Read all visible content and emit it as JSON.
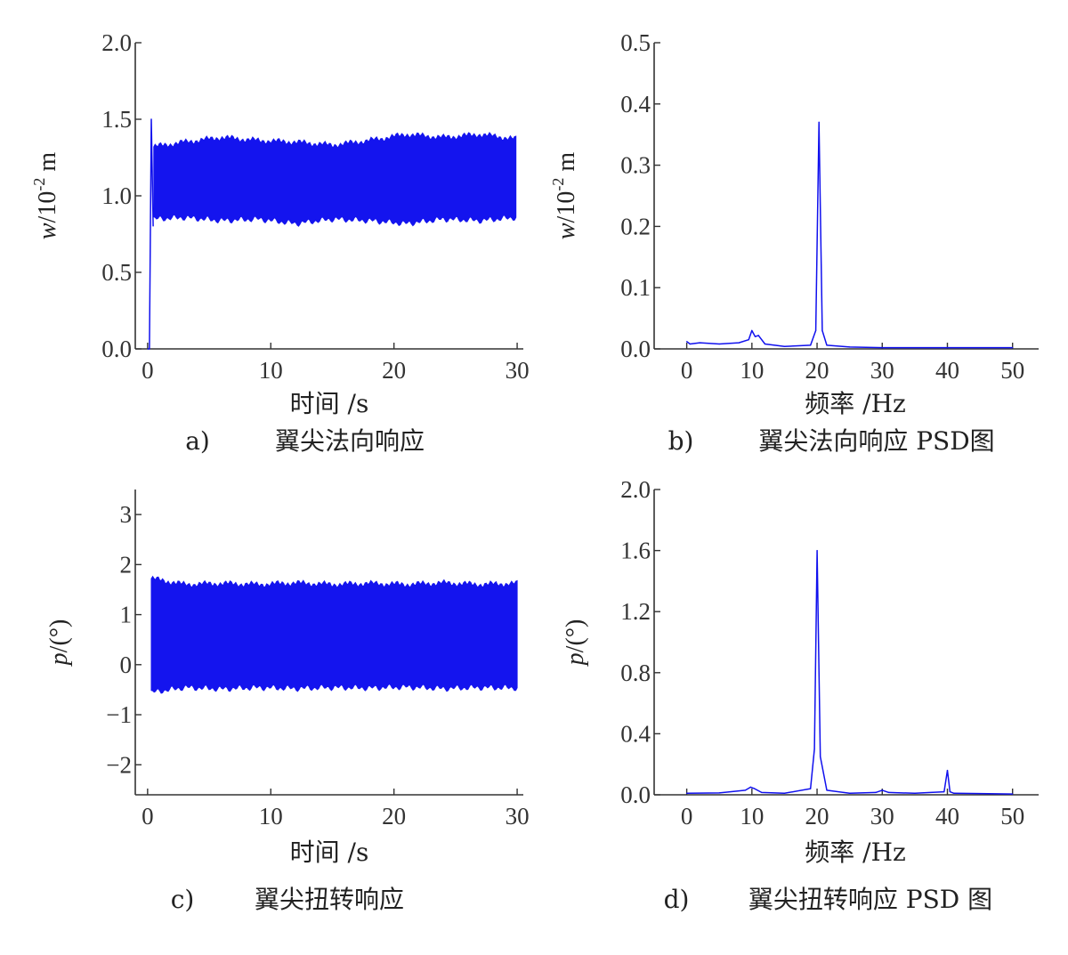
{
  "chart_data": [
    {
      "id": "a",
      "type": "line",
      "caption_label": "a)",
      "caption": "翼尖法向响应",
      "xlabel": "时间 /s",
      "ylabel_var": "w",
      "ylabel_unit": "/10",
      "ylabel_exp": "-2",
      "ylabel_tail": " m",
      "xlim": [
        -1,
        30.5
      ],
      "ylim": [
        0,
        2.0
      ],
      "xticks": [
        0,
        10,
        20,
        30
      ],
      "xtick_labels": [
        "0",
        "10",
        "20",
        "30"
      ],
      "yticks": [
        0,
        0.5,
        1.0,
        1.5,
        2.0
      ],
      "ytick_labels": [
        "0.0",
        "0.5",
        "1.0",
        "1.5",
        "2.0"
      ],
      "grid": false,
      "series": [
        {
          "color": "#1010ee",
          "style": "oscillation-band",
          "startup": [
            [
              0,
              0
            ],
            [
              0.15,
              0.0
            ],
            [
              0.3,
              1.5
            ],
            [
              0.45,
              0.8
            ]
          ],
          "x": [
            0.5,
            3,
            6,
            9,
            12,
            15,
            18,
            21,
            24,
            27,
            29.9
          ],
          "upper": [
            1.32,
            1.35,
            1.38,
            1.36,
            1.35,
            1.33,
            1.36,
            1.4,
            1.38,
            1.4,
            1.37
          ],
          "lower": [
            0.85,
            0.86,
            0.84,
            0.85,
            0.82,
            0.85,
            0.84,
            0.82,
            0.85,
            0.84,
            0.86
          ]
        }
      ]
    },
    {
      "id": "b",
      "type": "line",
      "caption_label": "b)",
      "caption": "翼尖法向响应 PSD图",
      "xlabel": "频率 /Hz",
      "ylabel_var": "w",
      "ylabel_unit": "/10",
      "ylabel_exp": "-2",
      "ylabel_tail": " m",
      "xlim": [
        -5,
        54
      ],
      "ylim": [
        0,
        0.5
      ],
      "xticks": [
        0,
        10,
        20,
        30,
        40,
        50
      ],
      "xtick_labels": [
        "0",
        "10",
        "20",
        "30",
        "40",
        "50"
      ],
      "yticks": [
        0,
        0.1,
        0.2,
        0.3,
        0.4,
        0.5
      ],
      "ytick_labels": [
        "0.0",
        "0.1",
        "0.2",
        "0.3",
        "0.4",
        "0.5"
      ],
      "grid": false,
      "series": [
        {
          "color": "#1010ee",
          "x": [
            0,
            0.5,
            2,
            5,
            8,
            9.5,
            10,
            10.5,
            11,
            12,
            15,
            19,
            19.8,
            20.3,
            20.8,
            21.5,
            25,
            30,
            40,
            50
          ],
          "y": [
            0.012,
            0.008,
            0.01,
            0.008,
            0.01,
            0.015,
            0.03,
            0.02,
            0.022,
            0.008,
            0.004,
            0.006,
            0.03,
            0.37,
            0.03,
            0.006,
            0.003,
            0.002,
            0.002,
            0.002
          ]
        }
      ]
    },
    {
      "id": "c",
      "type": "line",
      "caption_label": "c)",
      "caption": "翼尖扭转响应",
      "xlabel": "时间 /s",
      "ylabel_var": "p",
      "ylabel_unit": "/(°)",
      "ylabel_exp": "",
      "ylabel_tail": "",
      "xlim": [
        -1,
        30.5
      ],
      "ylim": [
        -2.6,
        3.5
      ],
      "xticks": [
        0,
        10,
        20,
        30
      ],
      "xtick_labels": [
        "0",
        "10",
        "20",
        "30"
      ],
      "yticks": [
        -2,
        -1,
        0,
        1,
        2,
        3
      ],
      "ytick_labels": [
        "−2",
        "−1",
        "0",
        "1",
        "2",
        "3"
      ],
      "grid": false,
      "series": [
        {
          "color": "#1010ee",
          "style": "oscillation-band",
          "startup": [],
          "x": [
            0.3,
            3,
            6,
            9,
            12,
            15,
            18,
            21,
            24,
            27,
            30
          ],
          "upper": [
            1.72,
            1.6,
            1.62,
            1.6,
            1.63,
            1.6,
            1.62,
            1.6,
            1.63,
            1.6,
            1.62
          ],
          "lower": [
            -0.55,
            -0.45,
            -0.48,
            -0.45,
            -0.47,
            -0.45,
            -0.46,
            -0.44,
            -0.47,
            -0.45,
            -0.46
          ]
        }
      ]
    },
    {
      "id": "d",
      "type": "line",
      "caption_label": "d)",
      "caption": "翼尖扭转响应 PSD 图",
      "xlabel": "频率 /Hz",
      "ylabel_var": "p",
      "ylabel_unit": "/(°)",
      "ylabel_exp": "",
      "ylabel_tail": "",
      "xlim": [
        -5,
        54
      ],
      "ylim": [
        0,
        2.0
      ],
      "xticks": [
        0,
        10,
        20,
        30,
        40,
        50
      ],
      "xtick_labels": [
        "0",
        "10",
        "20",
        "30",
        "40",
        "50"
      ],
      "yticks": [
        0,
        0.4,
        0.8,
        1.2,
        1.6,
        2.0
      ],
      "ytick_labels": [
        "0.0",
        "0.4",
        "0.8",
        "1.2",
        "1.6",
        "2.0"
      ],
      "grid": false,
      "series": [
        {
          "color": "#1010ee",
          "x": [
            0,
            5,
            9,
            9.8,
            10.4,
            11.5,
            15,
            19,
            19.6,
            20,
            20.5,
            21.5,
            25,
            29,
            30,
            31,
            35,
            39.5,
            40,
            40.4,
            41,
            45,
            50
          ],
          "y": [
            0.01,
            0.012,
            0.03,
            0.05,
            0.04,
            0.015,
            0.01,
            0.04,
            0.3,
            1.6,
            0.25,
            0.03,
            0.01,
            0.015,
            0.03,
            0.015,
            0.01,
            0.02,
            0.16,
            0.02,
            0.01,
            0.008,
            0.005
          ]
        }
      ]
    }
  ]
}
